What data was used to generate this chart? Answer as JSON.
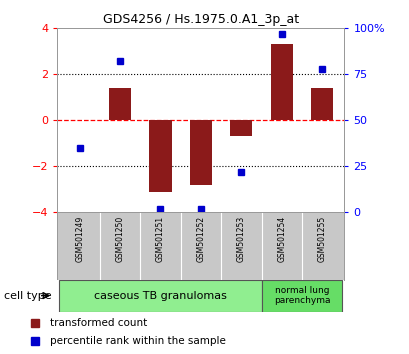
{
  "title": "GDS4256 / Hs.1975.0.A1_3p_at",
  "samples": [
    "GSM501249",
    "GSM501250",
    "GSM501251",
    "GSM501252",
    "GSM501253",
    "GSM501254",
    "GSM501255"
  ],
  "transformed_count": [
    0.0,
    1.4,
    -3.1,
    -2.8,
    -0.7,
    3.3,
    1.4
  ],
  "percentile_rank": [
    35,
    82,
    2,
    2,
    22,
    97,
    78
  ],
  "bar_color": "#8B1A1A",
  "dot_color": "#0000CC",
  "ylim_left": [
    -4,
    4
  ],
  "ylim_right": [
    0,
    100
  ],
  "yticks_left": [
    -4,
    -2,
    0,
    2,
    4
  ],
  "yticks_right": [
    0,
    25,
    50,
    75,
    100
  ],
  "ytick_labels_right": [
    "0",
    "25",
    "50",
    "75",
    "100%"
  ],
  "cell_type_groups": [
    {
      "label": "caseous TB granulomas",
      "samples": [
        0,
        1,
        2,
        3,
        4
      ],
      "color": "#90EE90"
    },
    {
      "label": "normal lung\nparenchyma",
      "samples": [
        5,
        6
      ],
      "color": "#66DD66"
    }
  ],
  "cell_type_label": "cell type",
  "legend_entries": [
    {
      "color": "#8B1A1A",
      "marker": "s",
      "label": "transformed count"
    },
    {
      "color": "#0000CC",
      "marker": "s",
      "label": "percentile rank within the sample"
    }
  ],
  "background_color": "#FFFFFF",
  "plot_bg_color": "#FFFFFF",
  "sample_bg_color": "#C8C8C8"
}
